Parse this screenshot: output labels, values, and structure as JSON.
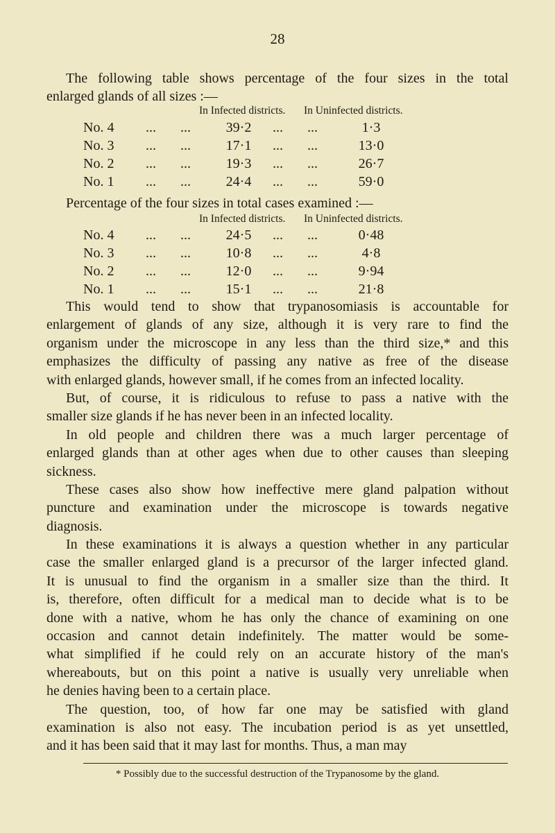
{
  "page_number": "28",
  "intro": [
    "The following table shows percentage of the four sizes in the total",
    "enlarged glands of all sizes :—"
  ],
  "table1": {
    "headers": [
      "In Infected districts.",
      "In Uninfected districts."
    ],
    "rows": [
      {
        "label": "No. 4",
        "infected": "39·2",
        "uninfected": "1·3"
      },
      {
        "label": "No. 3",
        "infected": "17·1",
        "uninfected": "13·0"
      },
      {
        "label": "No. 2",
        "infected": "19·3",
        "uninfected": "26·7"
      },
      {
        "label": "No. 1",
        "infected": "24·4",
        "uninfected": "59·0"
      }
    ]
  },
  "table2_caption": "Percentage of the four sizes in total cases examined :—",
  "table2": {
    "headers": [
      "In Infected districts.",
      "In Uninfected districts."
    ],
    "rows": [
      {
        "label": "No. 4",
        "infected": "24·5",
        "uninfected": "0·48"
      },
      {
        "label": "No. 3",
        "infected": "10·8",
        "uninfected": "4·8"
      },
      {
        "label": "No. 2",
        "infected": "12·0",
        "uninfected": "9·94"
      },
      {
        "label": "No. 1",
        "infected": "15·1",
        "uninfected": "21·8"
      }
    ]
  },
  "leader": "...",
  "paragraphs": [
    [
      "This would tend to show that trypanosomiasis is accountable for",
      "enlargement of glands of any size, although it is very rare to find the",
      "organism under the microscope in any less than the third size,* and this",
      "emphasizes the difficulty of passing any native as free of the disease",
      "with enlarged glands, however small, if he comes from an infected locality."
    ],
    [
      "But, of course, it is ridiculous to refuse to pass a native with the",
      "smaller size glands if he has never been in an infected locality."
    ],
    [
      "In old people and children there was a much larger percentage of",
      "enlarged glands than at other ages when due to other causes than sleeping",
      "sickness."
    ],
    [
      "These cases also show how ineffective mere gland palpation without",
      "puncture and examination under the microscope is towards negative",
      "diagnosis."
    ],
    [
      "In these examinations it is always a question whether in any particular",
      "case the smaller enlarged gland is a precursor of the larger infected gland.",
      "It is unusual to find the organism in a smaller size than the third. It",
      "is, therefore, often difficult for a medical man to decide what is to be",
      "done with a native, whom he has only the chance of examining on one",
      "occasion and cannot detain indefinitely. The matter would be some-",
      "what simplified if he could rely on an accurate history of the man's",
      "whereabouts, but on this point a native is usually very unreliable when",
      "he denies having been to a certain place."
    ],
    [
      "The question, too, of how far one may be satisfied with gland",
      "examination is also not easy. The incubation period is as yet unsettled,",
      "and it has been said that it may last for months. Thus, a man may"
    ]
  ],
  "footnote": "* Possibly due to the successful destruction of the Trypanosome by the gland."
}
